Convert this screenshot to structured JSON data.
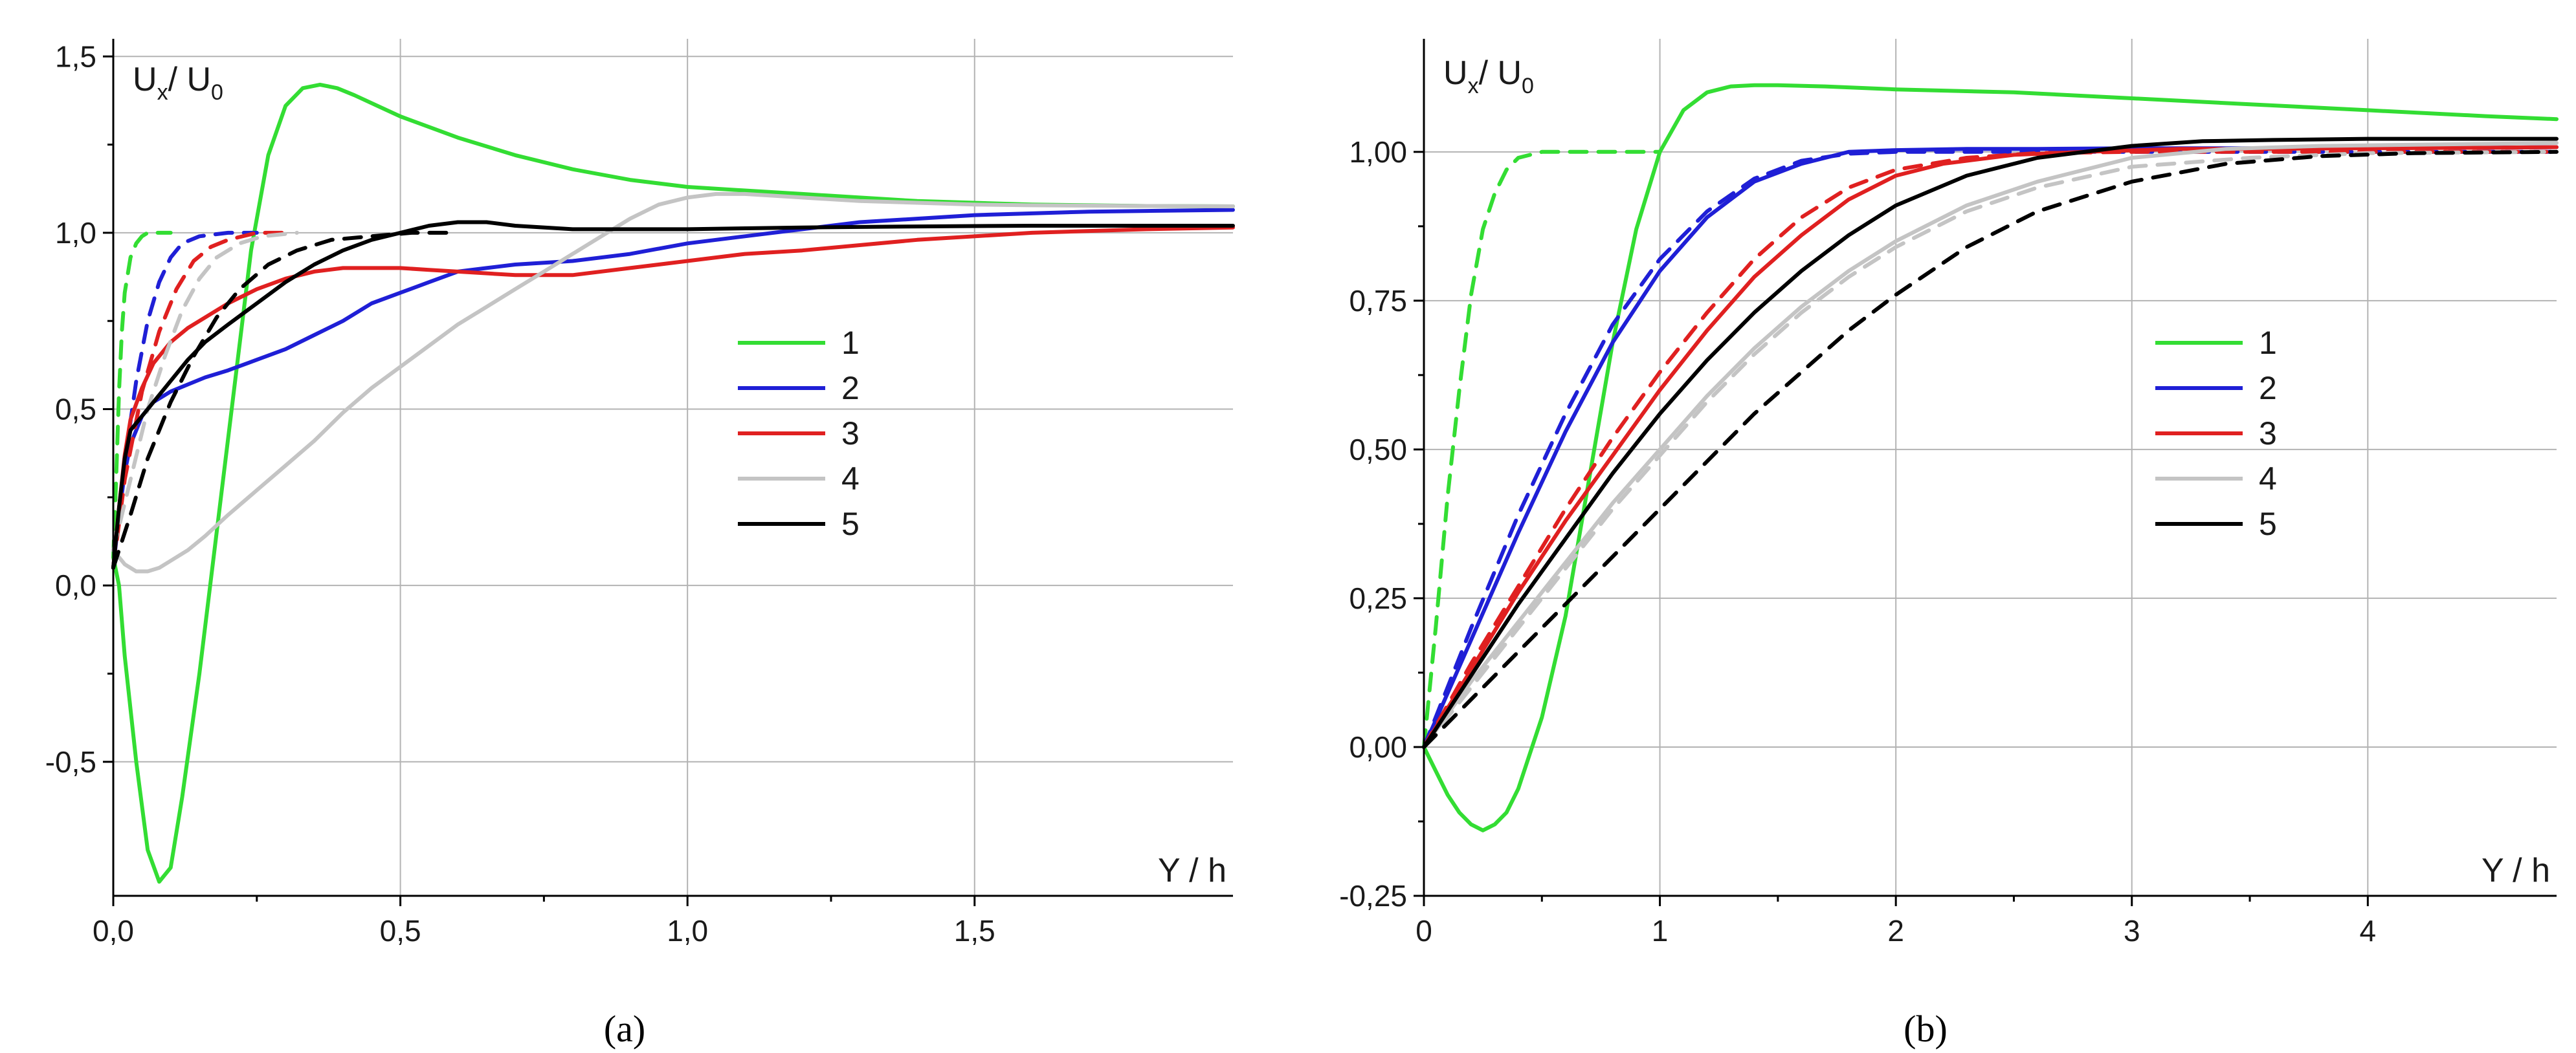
{
  "figure_captions": {
    "a": "(a)",
    "b": "(b)"
  },
  "chart_data": [
    {
      "panel": "a",
      "type": "line",
      "caption": "(a)",
      "ylabel_main": "U",
      "ylabel_sub1": "x",
      "ylabel_mid": "/ U",
      "ylabel_sub2": "0",
      "xlabel": "Y / h",
      "xlim": [
        0,
        1.95
      ],
      "ylim": [
        -0.88,
        1.55
      ],
      "xticks": [
        0,
        0.5,
        1.0,
        1.5
      ],
      "xtick_labels": [
        "0,0",
        "0,5",
        "1,0",
        "1,5"
      ],
      "yticks": [
        -0.5,
        0.0,
        0.5,
        1.0,
        1.5
      ],
      "ytick_labels": [
        "-0,5",
        "0,0",
        "0,5",
        "1,0",
        "1,5"
      ],
      "grid": true,
      "legend_position": "center-right",
      "legend": [
        {
          "label": "1",
          "color": "#33dd33"
        },
        {
          "label": "2",
          "color": "#1f1fd6"
        },
        {
          "label": "3",
          "color": "#e02020"
        },
        {
          "label": "4",
          "color": "#c4c4c4"
        },
        {
          "label": "5",
          "color": "#000000"
        }
      ],
      "series": [
        {
          "name": "1",
          "style": "solid",
          "color": "#33dd33",
          "x": [
            0,
            0.01,
            0.02,
            0.04,
            0.06,
            0.08,
            0.1,
            0.12,
            0.15,
            0.18,
            0.21,
            0.24,
            0.27,
            0.3,
            0.33,
            0.36,
            0.39,
            0.42,
            0.46,
            0.5,
            0.55,
            0.6,
            0.7,
            0.8,
            0.9,
            1.0,
            1.1,
            1.2,
            1.3,
            1.4,
            1.5,
            1.6,
            1.7,
            1.8,
            1.95
          ],
          "y": [
            0.08,
            0.0,
            -0.2,
            -0.5,
            -0.75,
            -0.84,
            -0.8,
            -0.6,
            -0.25,
            0.15,
            0.55,
            0.95,
            1.22,
            1.36,
            1.41,
            1.42,
            1.41,
            1.39,
            1.36,
            1.33,
            1.3,
            1.27,
            1.22,
            1.18,
            1.15,
            1.13,
            1.12,
            1.11,
            1.1,
            1.09,
            1.085,
            1.08,
            1.078,
            1.076,
            1.075
          ]
        },
        {
          "name": "1",
          "style": "dashed",
          "color": "#33dd33",
          "x": [
            0,
            0.005,
            0.01,
            0.015,
            0.02,
            0.03,
            0.04,
            0.05,
            0.06,
            0.08,
            0.1
          ],
          "y": [
            0.08,
            0.3,
            0.55,
            0.72,
            0.83,
            0.93,
            0.97,
            0.99,
            1.0,
            1.0,
            1.0
          ]
        },
        {
          "name": "2",
          "style": "solid",
          "color": "#1f1fd6",
          "x": [
            0,
            0.01,
            0.02,
            0.03,
            0.05,
            0.07,
            0.1,
            0.13,
            0.16,
            0.2,
            0.25,
            0.3,
            0.35,
            0.4,
            0.45,
            0.5,
            0.55,
            0.6,
            0.65,
            0.7,
            0.8,
            0.9,
            1.0,
            1.1,
            1.2,
            1.3,
            1.4,
            1.5,
            1.6,
            1.7,
            1.8,
            1.95
          ],
          "y": [
            0.05,
            0.2,
            0.32,
            0.4,
            0.48,
            0.52,
            0.55,
            0.57,
            0.59,
            0.61,
            0.64,
            0.67,
            0.71,
            0.75,
            0.8,
            0.83,
            0.86,
            0.89,
            0.9,
            0.91,
            0.92,
            0.94,
            0.97,
            0.99,
            1.01,
            1.03,
            1.04,
            1.05,
            1.055,
            1.06,
            1.062,
            1.065
          ]
        },
        {
          "name": "2",
          "style": "dashed",
          "color": "#1f1fd6",
          "x": [
            0,
            0.02,
            0.04,
            0.06,
            0.08,
            0.1,
            0.12,
            0.15,
            0.2,
            0.25
          ],
          "y": [
            0.05,
            0.35,
            0.58,
            0.75,
            0.86,
            0.93,
            0.97,
            0.99,
            1.0,
            1.0
          ]
        },
        {
          "name": "3",
          "style": "solid",
          "color": "#e02020",
          "x": [
            0,
            0.01,
            0.02,
            0.03,
            0.05,
            0.07,
            0.1,
            0.13,
            0.16,
            0.2,
            0.25,
            0.3,
            0.35,
            0.4,
            0.45,
            0.5,
            0.55,
            0.6,
            0.7,
            0.8,
            0.9,
            1.0,
            1.1,
            1.2,
            1.4,
            1.6,
            1.8,
            1.95
          ],
          "y": [
            0.05,
            0.22,
            0.37,
            0.47,
            0.56,
            0.63,
            0.69,
            0.73,
            0.76,
            0.8,
            0.84,
            0.87,
            0.89,
            0.9,
            0.9,
            0.9,
            0.895,
            0.89,
            0.88,
            0.88,
            0.9,
            0.92,
            0.94,
            0.95,
            0.98,
            1.0,
            1.01,
            1.015
          ]
        },
        {
          "name": "3",
          "style": "dashed",
          "color": "#e02020",
          "x": [
            0,
            0.02,
            0.05,
            0.08,
            0.11,
            0.14,
            0.17,
            0.2,
            0.25,
            0.3
          ],
          "y": [
            0.05,
            0.3,
            0.55,
            0.72,
            0.84,
            0.92,
            0.96,
            0.98,
            1.0,
            1.0
          ]
        },
        {
          "name": "4",
          "style": "solid",
          "color": "#c4c4c4",
          "x": [
            0,
            0.02,
            0.04,
            0.06,
            0.08,
            0.1,
            0.13,
            0.16,
            0.2,
            0.25,
            0.3,
            0.35,
            0.4,
            0.45,
            0.5,
            0.55,
            0.6,
            0.65,
            0.7,
            0.75,
            0.8,
            0.85,
            0.9,
            0.95,
            1.0,
            1.05,
            1.1,
            1.2,
            1.3,
            1.4,
            1.5,
            1.6,
            1.8,
            1.95
          ],
          "y": [
            0.1,
            0.06,
            0.04,
            0.04,
            0.05,
            0.07,
            0.1,
            0.14,
            0.2,
            0.27,
            0.34,
            0.41,
            0.49,
            0.56,
            0.62,
            0.68,
            0.74,
            0.79,
            0.84,
            0.89,
            0.94,
            0.99,
            1.04,
            1.08,
            1.1,
            1.11,
            1.11,
            1.1,
            1.09,
            1.085,
            1.08,
            1.078,
            1.076,
            1.075
          ]
        },
        {
          "name": "4",
          "style": "dashed",
          "color": "#c4c4c4",
          "x": [
            0,
            0.03,
            0.06,
            0.09,
            0.12,
            0.15,
            0.18,
            0.22,
            0.26,
            0.32
          ],
          "y": [
            0.1,
            0.3,
            0.5,
            0.65,
            0.78,
            0.87,
            0.93,
            0.97,
            0.99,
            1.0
          ]
        },
        {
          "name": "5",
          "style": "solid",
          "color": "#000000",
          "x": [
            0,
            0.01,
            0.02,
            0.03,
            0.05,
            0.07,
            0.1,
            0.13,
            0.16,
            0.2,
            0.25,
            0.3,
            0.35,
            0.4,
            0.45,
            0.5,
            0.55,
            0.6,
            0.65,
            0.7,
            0.8,
            0.9,
            1.0,
            1.2,
            1.4,
            1.6,
            1.8,
            1.95
          ],
          "y": [
            0.05,
            0.22,
            0.36,
            0.44,
            0.48,
            0.52,
            0.58,
            0.64,
            0.69,
            0.74,
            0.8,
            0.86,
            0.91,
            0.95,
            0.98,
            1.0,
            1.02,
            1.03,
            1.03,
            1.02,
            1.01,
            1.01,
            1.01,
            1.015,
            1.018,
            1.02,
            1.02,
            1.02
          ]
        },
        {
          "name": "5",
          "style": "dashed",
          "color": "#000000",
          "x": [
            0,
            0.03,
            0.06,
            0.1,
            0.14,
            0.18,
            0.22,
            0.27,
            0.32,
            0.38,
            0.45,
            0.52,
            0.6
          ],
          "y": [
            0.05,
            0.2,
            0.36,
            0.52,
            0.65,
            0.76,
            0.84,
            0.91,
            0.95,
            0.98,
            0.99,
            1.0,
            1.0
          ]
        }
      ]
    },
    {
      "panel": "b",
      "type": "line",
      "caption": "(b)",
      "ylabel_main": "U",
      "ylabel_sub1": "x",
      "ylabel_mid": "/ U",
      "ylabel_sub2": "0",
      "xlabel": "Y / h",
      "xlim": [
        0,
        4.8
      ],
      "ylim": [
        -0.25,
        1.19
      ],
      "xticks": [
        0,
        1,
        2,
        3,
        4
      ],
      "xtick_labels": [
        "0",
        "1",
        "2",
        "3",
        "4"
      ],
      "yticks": [
        -0.25,
        0.0,
        0.25,
        0.5,
        0.75,
        1.0
      ],
      "ytick_labels": [
        "-0,25",
        "0,00",
        "0,25",
        "0,50",
        "0,75",
        "1,00"
      ],
      "grid": true,
      "legend_position": "center-right",
      "legend": [
        {
          "label": "1",
          "color": "#33dd33"
        },
        {
          "label": "2",
          "color": "#1f1fd6"
        },
        {
          "label": "3",
          "color": "#e02020"
        },
        {
          "label": "4",
          "color": "#c4c4c4"
        },
        {
          "label": "5",
          "color": "#000000"
        }
      ],
      "series": [
        {
          "name": "1",
          "style": "solid",
          "color": "#33dd33",
          "x": [
            0,
            0.05,
            0.1,
            0.15,
            0.2,
            0.25,
            0.3,
            0.35,
            0.4,
            0.5,
            0.6,
            0.7,
            0.8,
            0.9,
            1.0,
            1.1,
            1.2,
            1.3,
            1.4,
            1.5,
            1.7,
            2.0,
            2.5,
            3.0,
            3.5,
            4.0,
            4.5,
            4.8
          ],
          "y": [
            0.0,
            -0.04,
            -0.08,
            -0.11,
            -0.13,
            -0.14,
            -0.13,
            -0.11,
            -0.07,
            0.05,
            0.22,
            0.45,
            0.68,
            0.87,
            1.0,
            1.07,
            1.1,
            1.11,
            1.112,
            1.112,
            1.11,
            1.105,
            1.1,
            1.09,
            1.08,
            1.07,
            1.06,
            1.055
          ]
        },
        {
          "name": "1",
          "style": "dashed",
          "color": "#33dd33",
          "x": [
            0,
            0.05,
            0.1,
            0.15,
            0.2,
            0.25,
            0.3,
            0.35,
            0.4,
            0.5,
            0.6,
            0.7,
            1.0
          ],
          "y": [
            0.0,
            0.2,
            0.42,
            0.6,
            0.76,
            0.87,
            0.93,
            0.97,
            0.99,
            1.0,
            1.0,
            1.0,
            1.0
          ]
        },
        {
          "name": "2",
          "style": "solid",
          "color": "#1f1fd6",
          "x": [
            0,
            0.2,
            0.4,
            0.6,
            0.8,
            1.0,
            1.2,
            1.4,
            1.6,
            1.8,
            2.0,
            2.3,
            2.6,
            3.0,
            3.5,
            4.0,
            4.5,
            4.8
          ],
          "y": [
            0.0,
            0.18,
            0.36,
            0.53,
            0.68,
            0.8,
            0.89,
            0.95,
            0.98,
            1.0,
            1.003,
            1.005,
            1.005,
            1.006,
            1.006,
            1.007,
            1.007,
            1.008
          ]
        },
        {
          "name": "2",
          "style": "dashed",
          "color": "#1f1fd6",
          "x": [
            0,
            0.2,
            0.4,
            0.6,
            0.8,
            1.0,
            1.2,
            1.4,
            1.6,
            1.8,
            2.0,
            2.5,
            3.0,
            4.0,
            4.8
          ],
          "y": [
            0.0,
            0.2,
            0.39,
            0.56,
            0.71,
            0.82,
            0.9,
            0.955,
            0.985,
            0.997,
            1.0,
            1.0,
            1.0,
            1.0,
            1.0
          ]
        },
        {
          "name": "3",
          "style": "solid",
          "color": "#e02020",
          "x": [
            0,
            0.2,
            0.4,
            0.6,
            0.8,
            1.0,
            1.2,
            1.4,
            1.6,
            1.8,
            2.0,
            2.2,
            2.5,
            2.8,
            3.2,
            3.6,
            4.0,
            4.5,
            4.8
          ],
          "y": [
            0.0,
            0.13,
            0.26,
            0.38,
            0.49,
            0.6,
            0.7,
            0.79,
            0.86,
            0.92,
            0.96,
            0.98,
            0.995,
            1.0,
            1.005,
            1.005,
            1.006,
            1.007,
            1.008
          ]
        },
        {
          "name": "3",
          "style": "dashed",
          "color": "#e02020",
          "x": [
            0,
            0.2,
            0.4,
            0.6,
            0.8,
            1.0,
            1.2,
            1.4,
            1.6,
            1.8,
            2.0,
            2.3,
            2.6,
            3.0,
            4.0,
            4.8
          ],
          "y": [
            0.0,
            0.14,
            0.27,
            0.4,
            0.52,
            0.63,
            0.73,
            0.82,
            0.89,
            0.94,
            0.97,
            0.99,
            0.998,
            1.0,
            1.0,
            1.0
          ]
        },
        {
          "name": "4",
          "style": "solid",
          "color": "#c4c4c4",
          "x": [
            0,
            0.2,
            0.4,
            0.6,
            0.8,
            1.0,
            1.2,
            1.4,
            1.6,
            1.8,
            2.0,
            2.3,
            2.6,
            3.0,
            3.4,
            3.8,
            4.2,
            4.8
          ],
          "y": [
            0.0,
            0.11,
            0.21,
            0.31,
            0.41,
            0.5,
            0.59,
            0.67,
            0.74,
            0.8,
            0.85,
            0.91,
            0.95,
            0.99,
            1.005,
            1.01,
            1.012,
            1.015
          ]
        },
        {
          "name": "4",
          "style": "dashed",
          "color": "#c4c4c4",
          "x": [
            0,
            0.2,
            0.4,
            0.6,
            0.8,
            1.0,
            1.2,
            1.4,
            1.6,
            1.8,
            2.0,
            2.3,
            2.6,
            3.0,
            3.5,
            4.0,
            4.8
          ],
          "y": [
            0.0,
            0.1,
            0.2,
            0.3,
            0.4,
            0.49,
            0.58,
            0.66,
            0.73,
            0.79,
            0.84,
            0.9,
            0.94,
            0.975,
            0.99,
            0.998,
            1.0
          ]
        },
        {
          "name": "5",
          "style": "solid",
          "color": "#000000",
          "x": [
            0,
            0.2,
            0.4,
            0.6,
            0.8,
            1.0,
            1.2,
            1.4,
            1.6,
            1.8,
            2.0,
            2.3,
            2.6,
            3.0,
            3.3,
            3.6,
            4.0,
            4.5,
            4.8
          ],
          "y": [
            0.0,
            0.12,
            0.24,
            0.35,
            0.46,
            0.56,
            0.65,
            0.73,
            0.8,
            0.86,
            0.91,
            0.96,
            0.99,
            1.01,
            1.018,
            1.02,
            1.022,
            1.022,
            1.022
          ]
        },
        {
          "name": "5",
          "style": "dashed",
          "color": "#000000",
          "x": [
            0,
            0.2,
            0.4,
            0.6,
            0.8,
            1.0,
            1.2,
            1.4,
            1.6,
            1.8,
            2.0,
            2.3,
            2.6,
            3.0,
            3.4,
            3.8,
            4.2,
            4.8
          ],
          "y": [
            0.0,
            0.08,
            0.16,
            0.24,
            0.32,
            0.4,
            0.48,
            0.56,
            0.63,
            0.7,
            0.76,
            0.84,
            0.9,
            0.95,
            0.98,
            0.993,
            0.998,
            1.0
          ]
        }
      ]
    }
  ]
}
